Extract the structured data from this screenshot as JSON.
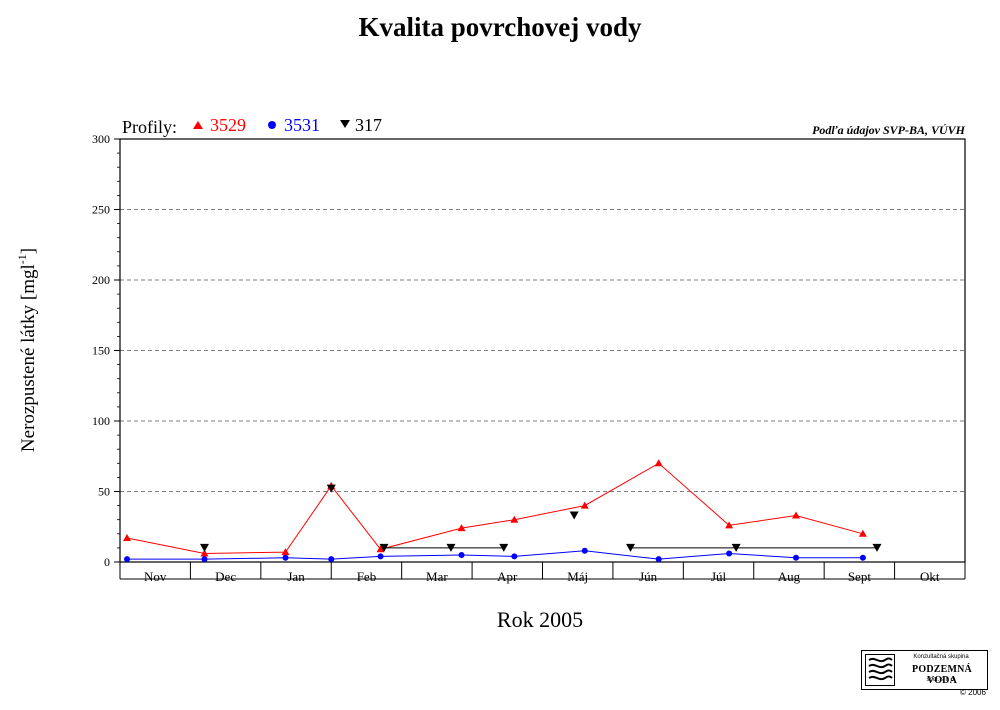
{
  "chart_data": {
    "type": "line",
    "title": "Kvalita povrchovej vody",
    "xlabel": "Rok 2005",
    "ylabel_main": "Nerozpustené látky [mgl",
    "ylabel_sup": "-1",
    "ylabel_end": "]",
    "source": "Podľa údajov SVP-BA, VÚVH",
    "legend_prefix": "Profily:",
    "categories": [
      "Nov",
      "Dec",
      "Jan",
      "Feb",
      "Mar",
      "Apr",
      "Máj",
      "Jún",
      "Júl",
      "Aug",
      "Sept",
      "Okt"
    ],
    "ylim": [
      0,
      300
    ],
    "yticks": [
      0,
      50,
      100,
      150,
      200,
      250,
      300
    ],
    "grid": true,
    "legend_position": "top-left",
    "series": [
      {
        "name": "3529",
        "color": "#ff0000",
        "marker": "triangle-up",
        "line": true,
        "points": [
          {
            "x": 0.1,
            "y": 17
          },
          {
            "x": 1.2,
            "y": 6
          },
          {
            "x": 2.35,
            "y": 7
          },
          {
            "x": 3.0,
            "y": 54
          },
          {
            "x": 3.7,
            "y": 9
          },
          {
            "x": 4.85,
            "y": 24
          },
          {
            "x": 5.6,
            "y": 30
          },
          {
            "x": 6.6,
            "y": 40
          },
          {
            "x": 7.65,
            "y": 70
          },
          {
            "x": 8.65,
            "y": 26
          },
          {
            "x": 9.6,
            "y": 33
          },
          {
            "x": 10.55,
            "y": 20
          }
        ]
      },
      {
        "name": "3531",
        "color": "#0000ff",
        "marker": "circle",
        "line": true,
        "points": [
          {
            "x": 0.1,
            "y": 2
          },
          {
            "x": 1.2,
            "y": 2
          },
          {
            "x": 2.35,
            "y": 3
          },
          {
            "x": 3.0,
            "y": 2
          },
          {
            "x": 3.7,
            "y": 4
          },
          {
            "x": 4.85,
            "y": 5
          },
          {
            "x": 5.6,
            "y": 4
          },
          {
            "x": 6.6,
            "y": 8
          },
          {
            "x": 7.65,
            "y": 2
          },
          {
            "x": 8.65,
            "y": 6
          },
          {
            "x": 9.6,
            "y": 3
          },
          {
            "x": 10.55,
            "y": 3
          }
        ]
      },
      {
        "name": "317",
        "color": "#000000",
        "marker": "triangle-down",
        "line": false,
        "points": [
          {
            "x": 1.2,
            "y": 10
          },
          {
            "x": 3.0,
            "y": 52
          },
          {
            "x": 3.75,
            "y": 10
          },
          {
            "x": 4.7,
            "y": 10
          },
          {
            "x": 5.45,
            "y": 10
          },
          {
            "x": 6.45,
            "y": 33
          },
          {
            "x": 7.25,
            "y": 10
          },
          {
            "x": 8.75,
            "y": 10
          },
          {
            "x": 10.75,
            "y": 10
          }
        ],
        "segments": [
          {
            "from": {
              "x": 3.75,
              "y": 10
            },
            "to": {
              "x": 5.45,
              "y": 10
            }
          },
          {
            "from": {
              "x": 7.25,
              "y": 10
            },
            "to": {
              "x": 10.75,
              "y": 10
            }
          }
        ]
      }
    ]
  },
  "logo": {
    "group": "Konzultačná skupina",
    "name": "PODZEMNÁ VODA",
    "sub": "spol. s r. o.",
    "copyright": "© 2006"
  }
}
